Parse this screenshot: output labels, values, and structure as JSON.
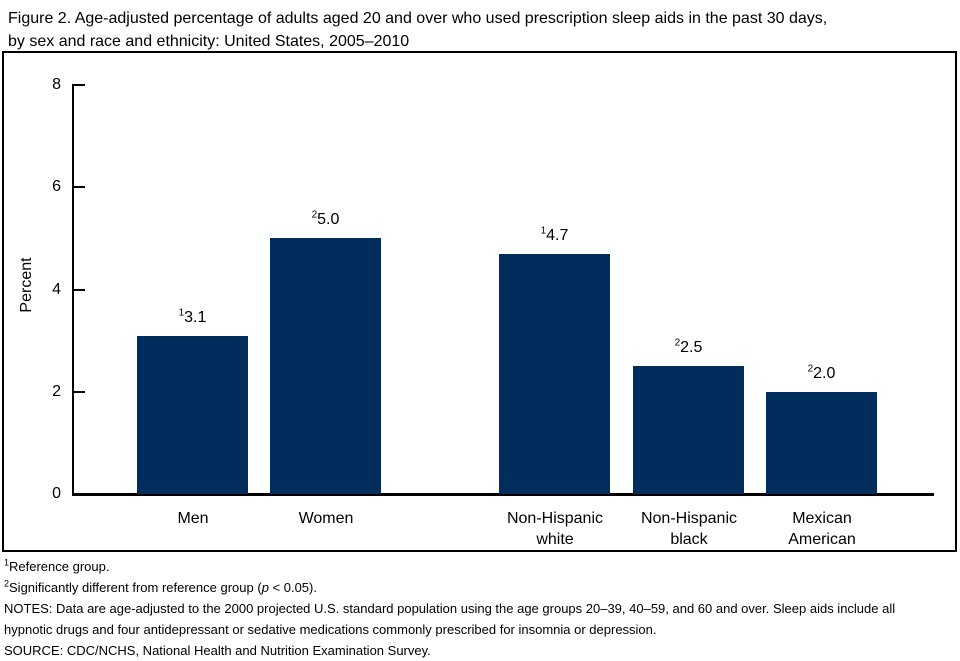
{
  "title": {
    "lines": [
      "Figure 2. Age-adjusted percentage of adults aged 20 and over who used prescription sleep aids in the past 30 days,",
      "by sex and race and ethnicity: United States, 2005–2010"
    ]
  },
  "chart_data": {
    "type": "bar",
    "title": "Figure 2. Age-adjusted percentage of adults aged 20 and over who used prescription sleep aids in the past 30 days, by sex and race and ethnicity: United States, 2005–2010",
    "xlabel": "",
    "ylabel": "Percent",
    "ylim": [
      0,
      8
    ],
    "yticks": [
      0,
      2,
      4,
      6,
      8
    ],
    "grid": false,
    "legend": "none",
    "categories": [
      "Men",
      "Women",
      "Non-Hispanic white",
      "Non-Hispanic black",
      "Mexican American"
    ],
    "values": [
      3.1,
      5.0,
      4.7,
      2.5,
      2.0
    ],
    "bars": [
      {
        "category_lines": [
          "Men"
        ],
        "value": 3.1,
        "label_sup": "1",
        "label_value": "3.1"
      },
      {
        "category_lines": [
          "Women"
        ],
        "value": 5.0,
        "label_sup": "2",
        "label_value": "5.0"
      },
      {
        "category_lines": [
          "Non-Hispanic",
          "white"
        ],
        "value": 4.7,
        "label_sup": "1",
        "label_value": "4.7"
      },
      {
        "category_lines": [
          "Non-Hispanic",
          "black"
        ],
        "value": 2.5,
        "label_sup": "2",
        "label_value": "2.5"
      },
      {
        "category_lines": [
          "Mexican",
          "American"
        ],
        "value": 2.0,
        "label_sup": "2",
        "label_value": "2.0"
      }
    ],
    "annotations": [
      "13.1",
      "25.0",
      "14.7",
      "22.5",
      "22.0"
    ]
  },
  "footnotes": {
    "ref": {
      "sup": "1",
      "text": "Reference group."
    },
    "sig": {
      "sup": "2",
      "before_p": "Significantly different from reference group (",
      "p": "p",
      "after_p": " < 0.05)."
    },
    "notes_lines": [
      "NOTES: Data are age-adjusted to the 2000 projected U.S. standard population using the age groups 20–39, 40–59, and 60 and over. Sleep aids include all",
      "hypnotic drugs and four antidepressant or sedative medications commonly prescribed for insomnia or depression."
    ],
    "source": "SOURCE: CDC/NCHS, National Health and Nutrition Examination Survey."
  },
  "colors": {
    "bar": "#002d5c",
    "axis": "#000000",
    "text": "#000000",
    "background": "#ffffff"
  }
}
